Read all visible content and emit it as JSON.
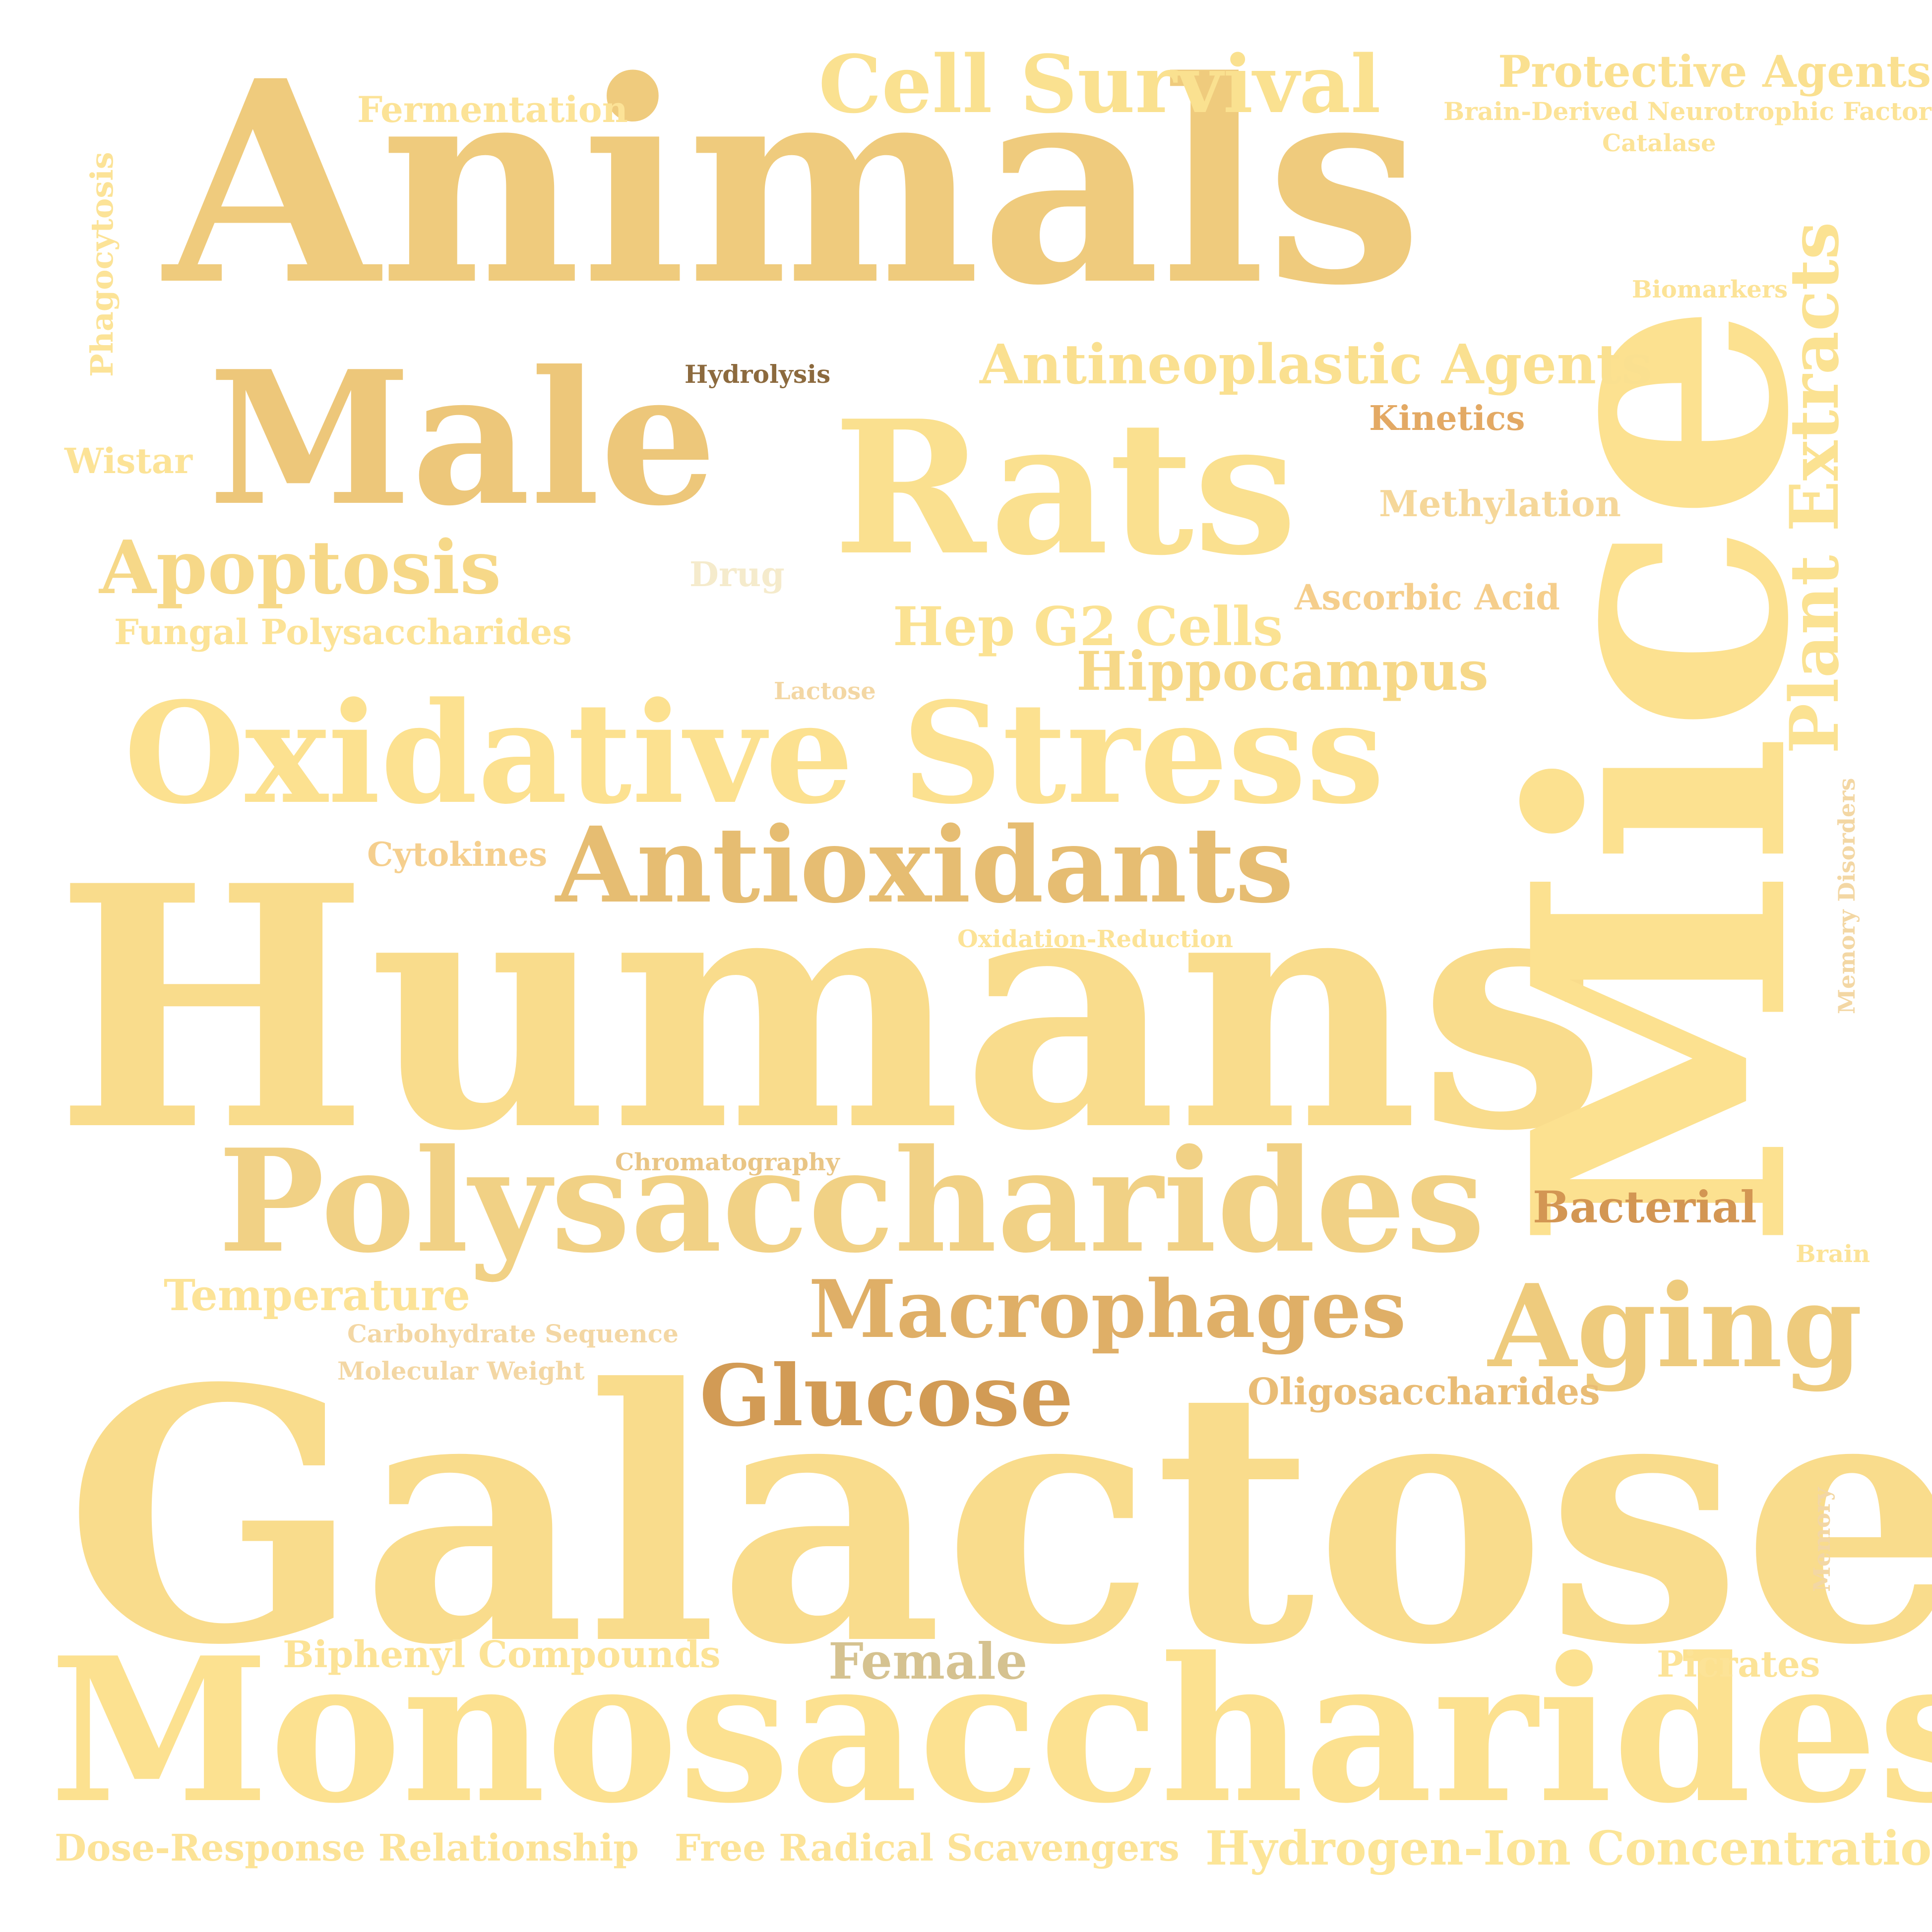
{
  "words": [
    {
      "key": "galactose",
      "text": "Galactose",
      "color": "#F9DC8C"
    },
    {
      "key": "humans",
      "text": "Humans",
      "color": "#F9DC8C"
    },
    {
      "key": "animals",
      "text": "Animals",
      "color": "#EFCB7D"
    },
    {
      "key": "mice",
      "text": "Mice",
      "color": "#FCE190"
    },
    {
      "key": "monosaccharides",
      "text": "Monosaccharides",
      "color": "#FCE190"
    },
    {
      "key": "oxidative_stress",
      "text": "Oxidative Stress",
      "color": "#FCE190"
    },
    {
      "key": "polysaccharides",
      "text": "Polysaccharides",
      "color": "#F1D185"
    },
    {
      "key": "male",
      "text": "Male",
      "color": "#EDC77A"
    },
    {
      "key": "rats",
      "text": "Rats",
      "color": "#FAE08F"
    },
    {
      "key": "antioxidants",
      "text": "Antioxidants",
      "color": "#E6BD72"
    },
    {
      "key": "aging",
      "text": "Aging",
      "color": "#EECB7D"
    },
    {
      "key": "macrophages",
      "text": "Macrophages",
      "color": "#DFAF67"
    },
    {
      "key": "glucose",
      "text": "Glucose",
      "color": "#D29B55"
    },
    {
      "key": "cell_survival",
      "text": "Cell Survival",
      "color": "#FAE190"
    },
    {
      "key": "apoptosis",
      "text": "Apoptosis",
      "color": "#F6D888"
    },
    {
      "key": "plant_extracts",
      "text": "Plant Extracts",
      "color": "#FBE292"
    },
    {
      "key": "antineoplastic_agents",
      "text": "Antineoplastic Agents",
      "color": "#FAE090"
    },
    {
      "key": "hep_g2_cells",
      "text": "Hep G2 Cells",
      "color": "#FBE292"
    },
    {
      "key": "hippocampus",
      "text": "Hippocampus",
      "color": "#F6D888"
    },
    {
      "key": "protective_agents",
      "text": "Protective Agents",
      "color": "#FAE090"
    },
    {
      "key": "hydrogen_ion",
      "text": "Hydrogen-Ion Concentration",
      "color": "#FCE597"
    },
    {
      "key": "female",
      "text": "Female",
      "color": "#D5C290"
    },
    {
      "key": "bacterial",
      "text": "Bacterial",
      "color": "#D39653"
    },
    {
      "key": "temperature",
      "text": "Temperature",
      "color": "#FCE397"
    },
    {
      "key": "biphenyl",
      "text": "Biphenyl Compounds",
      "color": "#FCE397"
    },
    {
      "key": "free_radical",
      "text": "Free Radical Scavengers",
      "color": "#FCE397"
    },
    {
      "key": "dose_response",
      "text": "Dose-Response Relationship",
      "color": "#FCE397"
    },
    {
      "key": "oligosaccharides",
      "text": "Oligosaccharides",
      "color": "#E9BC75"
    },
    {
      "key": "fungal",
      "text": "Fungal Polysaccharides",
      "color": "#FCE397"
    },
    {
      "key": "picrates",
      "text": "Picrates",
      "color": "#FCE397"
    },
    {
      "key": "fermentation",
      "text": "Fermentation",
      "color": "#FCE397"
    },
    {
      "key": "ascorbic",
      "text": "Ascorbic Acid",
      "color": "#F5CE8C"
    },
    {
      "key": "methylation",
      "text": "Methylation",
      "color": "#F5D79A"
    },
    {
      "key": "kinetics",
      "text": "Kinetics",
      "color": "#E3A964"
    },
    {
      "key": "cytokines",
      "text": "Cytokines",
      "color": "#F5CF8E"
    },
    {
      "key": "wistar",
      "text": "Wistar",
      "color": "#FCE397"
    },
    {
      "key": "phagocytosis",
      "text": "Phagocytosis",
      "color": "#FCE397"
    },
    {
      "key": "drug",
      "text": "Drug",
      "color": "#F5EBCC"
    },
    {
      "key": "bdnf",
      "text": "Brain-Derived Neurotrophic Factor",
      "color": "#FCE397"
    },
    {
      "key": "carbohydrate",
      "text": "Carbohydrate Sequence",
      "color": "#F3D7A4"
    },
    {
      "key": "molecular_weight",
      "text": "Molecular Weight",
      "color": "#F3D7A4"
    },
    {
      "key": "chromatography",
      "text": "Chromatography",
      "color": "#E9C585"
    },
    {
      "key": "oxidation_reduction",
      "text": "Oxidation-Reduction",
      "color": "#FCE397"
    },
    {
      "key": "lactose",
      "text": "Lactose",
      "color": "#F3D7A4"
    },
    {
      "key": "hydrolysis",
      "text": "Hydrolysis",
      "color": "#8C6A3E"
    },
    {
      "key": "catalase",
      "text": "Catalase",
      "color": "#FCE397"
    },
    {
      "key": "biomarkers",
      "text": "Biomarkers",
      "color": "#FCE397"
    },
    {
      "key": "memory_disorders",
      "text": "Memory Disorders",
      "color": "#F3D7A4"
    },
    {
      "key": "brain",
      "text": "Brain",
      "color": "#FCE397"
    },
    {
      "key": "memory",
      "text": "Memory",
      "color": "#F3D7A4"
    }
  ]
}
